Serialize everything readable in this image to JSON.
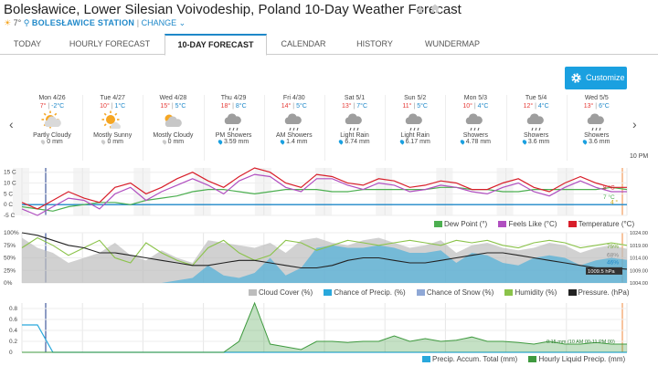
{
  "header": {
    "title": "Bolesławice, Lower Silesian Voivodeship, Poland 10-Day Weather Forecast",
    "current_temp": "7°",
    "station": "BOLESŁAWICE STATION",
    "separator": "|",
    "change_label": "CHANGE"
  },
  "tabs": [
    {
      "label": "TODAY"
    },
    {
      "label": "HOURLY FORECAST"
    },
    {
      "label": "10-DAY FORECAST",
      "active": true
    },
    {
      "label": "CALENDAR"
    },
    {
      "label": "HISTORY"
    },
    {
      "label": "WUNDERMAP"
    }
  ],
  "customize_label": "Customize",
  "days": [
    {
      "name": "Mon 4/26",
      "hi": "7°",
      "lo": "-2°C",
      "cond": "Partly Cloudy",
      "precip": "0 mm",
      "icon": "partly-cloudy"
    },
    {
      "name": "Tue 4/27",
      "hi": "10°",
      "lo": "1°C",
      "cond": "Mostly Sunny",
      "precip": "0 mm",
      "icon": "mostly-sunny"
    },
    {
      "name": "Wed 4/28",
      "hi": "15°",
      "lo": "5°C",
      "cond": "Mostly Cloudy",
      "precip": "0 mm",
      "icon": "mostly-cloudy"
    },
    {
      "name": "Thu 4/29",
      "hi": "18°",
      "lo": "8°C",
      "cond": "PM Showers",
      "precip": "3.59 mm",
      "icon": "showers"
    },
    {
      "name": "Fri 4/30",
      "hi": "14°",
      "lo": "5°C",
      "cond": "AM Showers",
      "precip": "1.4 mm",
      "icon": "showers"
    },
    {
      "name": "Sat 5/1",
      "hi": "13°",
      "lo": "7°C",
      "cond": "Light Rain",
      "precip": "6.74 mm",
      "icon": "rain"
    },
    {
      "name": "Sun 5/2",
      "hi": "11°",
      "lo": "5°C",
      "cond": "Light Rain",
      "precip": "6.17 mm",
      "icon": "rain"
    },
    {
      "name": "Mon 5/3",
      "hi": "10°",
      "lo": "4°C",
      "cond": "Showers",
      "precip": "4.78 mm",
      "icon": "showers"
    },
    {
      "name": "Tue 5/4",
      "hi": "12°",
      "lo": "4°C",
      "cond": "Showers",
      "precip": "3.6 mm",
      "icon": "showers"
    },
    {
      "name": "Wed 5/5",
      "hi": "13°",
      "lo": "6°C",
      "cond": "Showers",
      "precip": "3.6 mm",
      "icon": "showers"
    }
  ],
  "time_marker": "10 PM",
  "colors": {
    "accent": "#1e88c9",
    "temperature": "#d81e2a",
    "feels_like": "#b04fc0",
    "dew_point": "#4caf50",
    "cloud_cover": "#bdbdbd",
    "chance_precip": "#29a8dc",
    "chance_snow": "#8fa8d6",
    "humidity": "#8bc34a",
    "pressure": "#222222",
    "precip_total": "#29a8dc",
    "hourly_liquid": "#3f9a3f",
    "now_line": "#1e3a8a",
    "end_line": "#f08a3c"
  },
  "chart_data": [
    {
      "type": "line",
      "x_start": "Mon 4/26",
      "x_end": "Wed 5/5 10 PM",
      "ylabel": "",
      "ytick_labels": [
        "15 C",
        "10 C",
        "5 C",
        "0 C",
        "-5 C"
      ],
      "ylim": [
        -5,
        17
      ],
      "end_labels": {
        "temperature": "8 °C",
        "feels_like": "6 °C",
        "dew_point": "7 °C",
        "extra": "4 °"
      },
      "series": [
        {
          "name": "Dew Point (°)",
          "values": [
            -1,
            -2,
            -3,
            -1,
            0,
            1,
            1,
            0,
            2,
            3,
            4,
            6,
            7,
            7,
            6,
            5,
            6,
            7,
            7,
            7,
            6,
            6,
            7,
            7,
            7,
            7,
            7,
            8,
            8,
            7,
            7,
            6,
            6,
            7,
            7,
            7,
            7,
            7,
            8,
            7
          ]
        },
        {
          "name": "Feels Like (°C)",
          "values": [
            -2,
            -5,
            -1,
            3,
            2,
            -2,
            5,
            8,
            2,
            6,
            9,
            12,
            9,
            5,
            11,
            14,
            13,
            8,
            6,
            12,
            12,
            9,
            7,
            10,
            9,
            6,
            7,
            9,
            8,
            6,
            5,
            8,
            10,
            6,
            4,
            8,
            11,
            8,
            6,
            6
          ]
        },
        {
          "name": "Temperature (°C)",
          "values": [
            1,
            -2,
            2,
            6,
            3,
            1,
            8,
            10,
            5,
            8,
            12,
            15,
            11,
            8,
            13,
            17,
            15,
            10,
            8,
            14,
            13,
            10,
            9,
            12,
            11,
            8,
            9,
            11,
            10,
            7,
            7,
            10,
            12,
            8,
            6,
            10,
            13,
            10,
            8,
            8
          ]
        }
      ]
    },
    {
      "type": "area",
      "ytick_labels_left": [
        "100%",
        "75%",
        "50%",
        "25%",
        "0%"
      ],
      "ytick_labels_right": [
        "1024.00",
        "1019.00",
        "1014.00",
        "1009.00",
        "1004.00"
      ],
      "ylim_left": [
        0,
        100
      ],
      "ylim_right": [
        1004,
        1024
      ],
      "end_labels": {
        "humidity": "75%",
        "cloud": "68%",
        "precip": "46%",
        "pressure": "1009.5 hPa"
      },
      "series": [
        {
          "name": "Cloud Cover (%)",
          "values": [
            90,
            70,
            60,
            40,
            50,
            60,
            80,
            55,
            45,
            65,
            50,
            40,
            85,
            80,
            75,
            70,
            80,
            60,
            85,
            90,
            80,
            75,
            85,
            90,
            80,
            70,
            75,
            85,
            60,
            75,
            80,
            70,
            65,
            70,
            80,
            75,
            60,
            70,
            75,
            68
          ]
        },
        {
          "name": "Chance of Precip. (%)",
          "values": [
            0,
            0,
            0,
            0,
            0,
            0,
            0,
            0,
            0,
            0,
            5,
            10,
            35,
            15,
            10,
            20,
            50,
            15,
            30,
            70,
            75,
            70,
            70,
            75,
            70,
            60,
            60,
            65,
            40,
            60,
            55,
            40,
            35,
            50,
            55,
            50,
            35,
            45,
            50,
            46
          ]
        },
        {
          "name": "Chance of Snow (%)",
          "values": [
            0,
            0,
            0,
            0,
            0,
            0,
            0,
            0,
            0,
            0,
            0,
            0,
            0,
            0,
            0,
            0,
            0,
            0,
            0,
            0,
            0,
            0,
            0,
            0,
            0,
            0,
            0,
            0,
            0,
            0,
            0,
            0,
            0,
            0,
            0,
            0,
            0,
            0,
            0,
            0
          ]
        },
        {
          "name": "Humidity (%)",
          "values": [
            70,
            90,
            75,
            55,
            70,
            85,
            50,
            40,
            80,
            60,
            45,
            35,
            70,
            85,
            60,
            45,
            55,
            85,
            80,
            65,
            75,
            85,
            80,
            75,
            80,
            85,
            80,
            75,
            85,
            80,
            85,
            75,
            70,
            80,
            85,
            80,
            70,
            75,
            80,
            75
          ]
        },
        {
          "name": "Pressure. (hPa)",
          "values": [
            1024,
            1023,
            1021,
            1019,
            1018,
            1016,
            1016,
            1015,
            1014,
            1013,
            1012,
            1011,
            1011,
            1012,
            1013,
            1013,
            1012,
            1011,
            1010,
            1010,
            1011,
            1013,
            1014,
            1014,
            1013,
            1012,
            1012,
            1013,
            1014,
            1015,
            1016,
            1016,
            1015,
            1014,
            1013,
            1012,
            1011,
            1010,
            1010,
            1009.5
          ]
        }
      ]
    },
    {
      "type": "area",
      "ytick_labels": [
        "0.8",
        "0.6",
        "0.4",
        "0.2",
        "0"
      ],
      "ylim": [
        0,
        0.9
      ],
      "annotation": "0.15 mm (10 AM 00-11 PM 00)",
      "series": [
        {
          "name": "Precip. Accum. Total (mm)",
          "values": [
            0.5,
            0.5,
            0,
            0,
            0,
            0,
            0,
            0,
            0,
            0,
            0,
            0,
            0,
            0,
            0,
            0,
            0,
            0,
            0,
            0,
            0,
            0,
            0,
            0,
            0,
            0,
            0,
            0,
            0,
            0,
            0,
            0,
            0,
            0,
            0,
            0,
            0,
            0,
            0,
            0
          ]
        },
        {
          "name": "Hourly Liquid Precip. (mm)",
          "values": [
            0,
            0,
            0,
            0,
            0,
            0,
            0,
            0,
            0,
            0,
            0,
            0,
            0,
            0,
            0.2,
            0.9,
            0.15,
            0.1,
            0.05,
            0.2,
            0.2,
            0.18,
            0.2,
            0.2,
            0.3,
            0.2,
            0.25,
            0.2,
            0.22,
            0.28,
            0.2,
            0.2,
            0.18,
            0.15,
            0.2,
            0.15,
            0.15,
            0.18,
            0.15,
            0.15
          ]
        }
      ]
    }
  ]
}
